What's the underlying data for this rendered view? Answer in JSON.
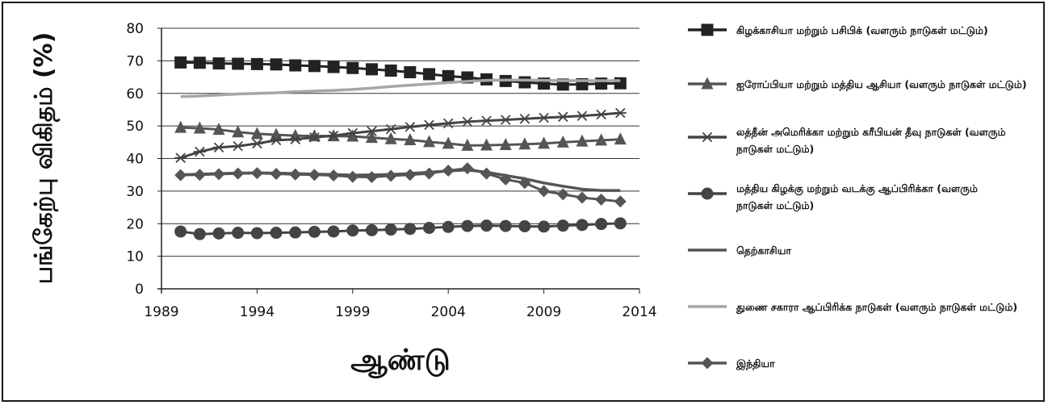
{
  "chart_data": {
    "type": "line",
    "xlabel": "ஆண்டு",
    "ylabel": "பங்கேற்பு விகிதம் (%)",
    "xlim": [
      1989,
      2014
    ],
    "ylim": [
      0,
      80
    ],
    "x_ticks": [
      1989,
      1994,
      1999,
      2004,
      2009,
      2014
    ],
    "y_ticks": [
      0,
      10,
      20,
      30,
      40,
      50,
      60,
      70,
      80
    ],
    "grid": "horizontal",
    "legend_position": "right",
    "x": [
      1990,
      1991,
      1992,
      1993,
      1994,
      1995,
      1996,
      1997,
      1998,
      1999,
      2000,
      2001,
      2002,
      2003,
      2004,
      2005,
      2006,
      2007,
      2008,
      2009,
      2010,
      2011,
      2012,
      2013
    ],
    "series": [
      {
        "name": "கிழக்காசியா மற்றும் பசிபிக் (வளரும் நாடுகள் மட்டும்)",
        "marker": "square",
        "color": "#222222",
        "values": [
          69.5,
          69.4,
          69.2,
          69.1,
          69.0,
          68.9,
          68.6,
          68.4,
          68.1,
          67.8,
          67.4,
          67.0,
          66.5,
          65.9,
          65.3,
          64.9,
          64.3,
          63.8,
          63.4,
          63.0,
          62.7,
          62.8,
          63.0,
          63.1
        ]
      },
      {
        "name": "ஐரோப்பியா மற்றும் மத்திய ஆசியா (வளரும் நாடுகள் மட்டும்)",
        "marker": "triangle",
        "color": "#555555",
        "values": [
          49.5,
          49.3,
          48.9,
          48.1,
          47.6,
          47.3,
          47.0,
          46.9,
          46.9,
          46.8,
          46.4,
          46.0,
          45.7,
          45.1,
          44.6,
          44.0,
          44.1,
          44.2,
          44.4,
          44.6,
          45.0,
          45.3,
          45.6,
          45.9
        ]
      },
      {
        "name": "லத்தீன் அமெரிக்கா மற்றும் கரீபியன் தீவு நாடுகள் (வளரும் நாடுகள் மட்டும்)",
        "marker": "asterisk",
        "color": "#444444",
        "values": [
          40.2,
          42.1,
          43.4,
          43.8,
          44.6,
          45.6,
          45.9,
          46.5,
          47.0,
          47.8,
          48.4,
          49.0,
          49.7,
          50.3,
          50.8,
          51.3,
          51.6,
          51.9,
          52.2,
          52.5,
          52.8,
          53.1,
          53.5,
          54.0
        ]
      },
      {
        "name": "மத்திய கிழக்கு மற்றும் வடக்கு ஆப்பிரிக்கா (வளரும் நாடுகள் மட்டும்)",
        "marker": "circle",
        "color": "#444444",
        "values": [
          17.6,
          16.8,
          17.0,
          17.2,
          17.1,
          17.2,
          17.3,
          17.5,
          17.6,
          17.9,
          18.0,
          18.2,
          18.4,
          18.7,
          19.0,
          19.3,
          19.4,
          19.3,
          19.2,
          19.1,
          19.4,
          19.6,
          19.9,
          20.1
        ]
      },
      {
        "name": "தெற்காசியா",
        "marker": "none",
        "color": "#555555",
        "values": [
          35.0,
          35.2,
          35.4,
          35.5,
          35.6,
          35.5,
          35.4,
          35.2,
          35.1,
          34.9,
          35.0,
          35.1,
          35.4,
          35.8,
          36.2,
          36.5,
          35.8,
          34.8,
          33.8,
          32.5,
          31.5,
          30.6,
          30.2,
          30.2
        ]
      },
      {
        "name": "துணை சகாரா ஆப்பிரிக்க நாடுகள் (வளரும் நாடுகள் மட்டும்)",
        "marker": "none",
        "color": "#a6a6a6",
        "values": [
          59.0,
          59.2,
          59.5,
          59.8,
          60.0,
          60.2,
          60.5,
          60.7,
          60.9,
          61.2,
          61.6,
          62.1,
          62.5,
          62.9,
          63.3,
          63.7,
          64.0,
          64.1,
          64.1,
          64.0,
          63.9,
          63.9,
          63.9,
          63.9
        ]
      },
      {
        "name": "இந்தியா",
        "marker": "diamond",
        "color": "#555555",
        "values": [
          34.9,
          35.0,
          35.2,
          35.4,
          35.5,
          35.3,
          35.1,
          35.0,
          34.8,
          34.4,
          34.3,
          34.7,
          35.0,
          35.4,
          36.3,
          37.0,
          35.4,
          33.6,
          32.5,
          30.0,
          29.0,
          28.0,
          27.4,
          26.8
        ]
      }
    ]
  }
}
